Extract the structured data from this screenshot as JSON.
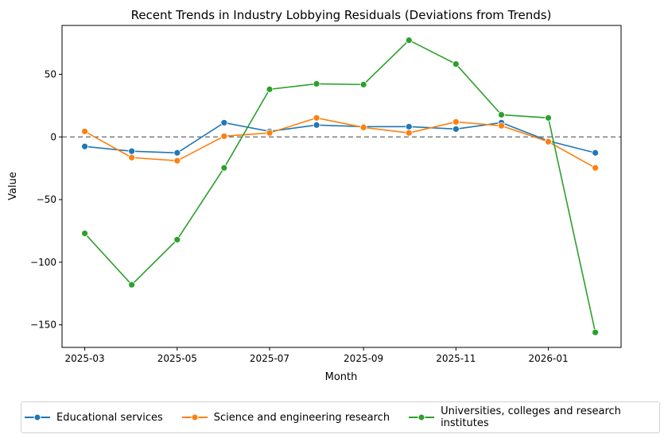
{
  "chart_data": {
    "type": "line",
    "title": "Recent Trends in Industry Lobbying Residuals (Deviations from Trends)",
    "xlabel": "Month",
    "ylabel": "Value",
    "x": [
      "2025-03",
      "2025-04",
      "2025-05",
      "2025-06",
      "2025-07",
      "2025-08",
      "2025-09",
      "2025-10",
      "2025-11",
      "2025-12",
      "2026-01",
      "2026-02"
    ],
    "xticks": [
      "2025-03",
      "2025-05",
      "2025-07",
      "2025-09",
      "2025-11",
      "2026-01"
    ],
    "yticks": [
      50,
      0,
      -50,
      -100,
      -150
    ],
    "ylim": [
      -168,
      89
    ],
    "xlim": [
      "2025-02-14",
      "2026-02-18"
    ],
    "reference_line": {
      "y": 0,
      "style": "dashed",
      "color": "#808080"
    },
    "grid": false,
    "legend_placement": "bottom",
    "series": [
      {
        "name": "Educational services",
        "color": "#1f77b4",
        "values": [
          -7.6,
          -11.4,
          -12.7,
          11.4,
          4.4,
          9.5,
          8.2,
          8.2,
          6.3,
          11.4,
          -3.2,
          -12.7
        ]
      },
      {
        "name": "Science and engineering research",
        "color": "#ff7f0e",
        "values": [
          4.4,
          -16.5,
          -19.0,
          0.6,
          3.2,
          15.2,
          7.6,
          3.2,
          12.0,
          8.9,
          -3.8,
          -24.7
        ]
      },
      {
        "name": "Universities, colleges and research institutes",
        "legend_lines": [
          "Universities, colleges and research",
          "institutes"
        ],
        "color": "#2ca02c",
        "values": [
          -77.0,
          -118.0,
          -82.0,
          -24.7,
          38.0,
          42.4,
          41.8,
          77.2,
          58.2,
          17.7,
          15.2,
          -156.0
        ]
      }
    ]
  }
}
